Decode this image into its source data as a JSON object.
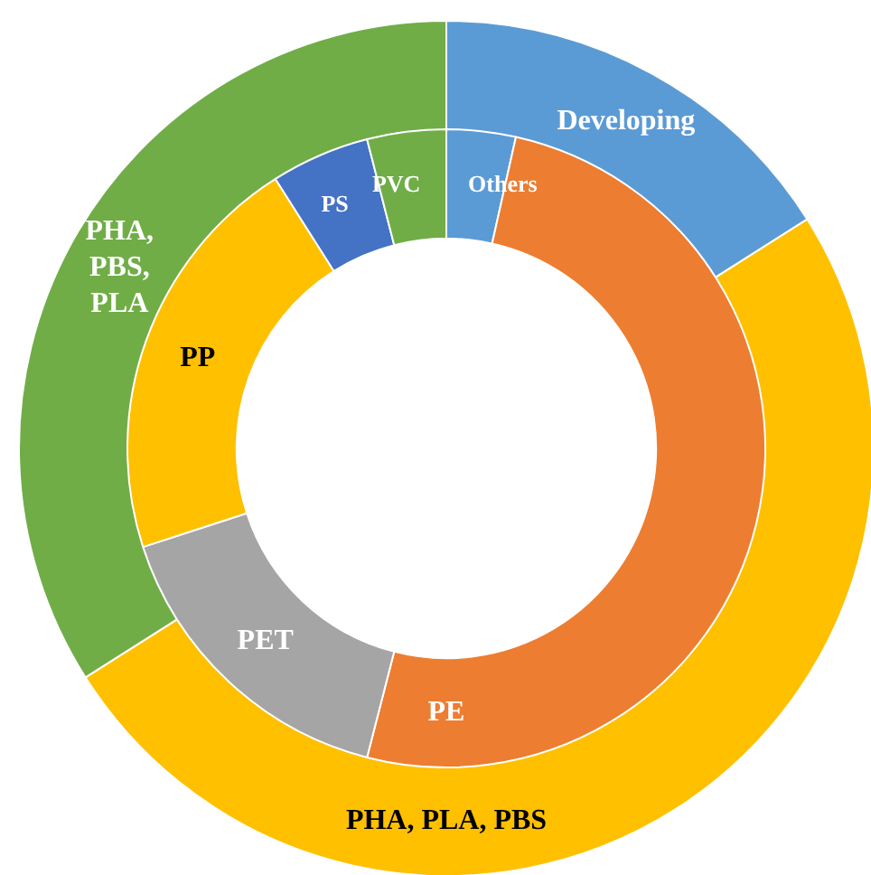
{
  "chart_data": [
    {
      "type": "donut",
      "categories": [
        "Developing",
        "PHA, PLA, PBS",
        "PHA, PBS, PLA"
      ],
      "values": [
        16,
        50,
        34
      ],
      "colors": [
        "#5b9bd5",
        "#ffc000",
        "#70ad47"
      ]
    },
    {
      "type": "donut",
      "categories": [
        "Others",
        "PE",
        "PET",
        "PP",
        "PS",
        "PVC"
      ],
      "values": [
        3.5,
        50.5,
        16,
        21,
        5,
        4
      ],
      "colors": [
        "#5b9bd5",
        "#ed7d31",
        "#a5a5a5",
        "#ffc000",
        "#4472c4",
        "#70ad47"
      ]
    }
  ]
}
